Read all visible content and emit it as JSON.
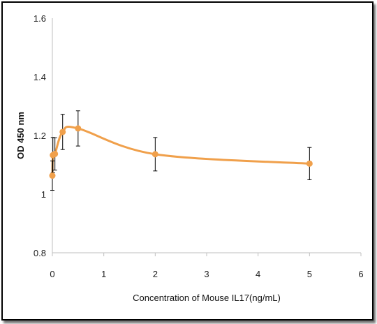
{
  "chart_data": {
    "type": "line",
    "xlabel": "Concentration of Mouse IL17(ng/mL)",
    "ylabel": "OD 450 nm",
    "xlim": [
      0,
      6
    ],
    "ylim": [
      0.8,
      1.6
    ],
    "x_ticks": [
      "0",
      "1",
      "2",
      "3",
      "4",
      "5",
      "6"
    ],
    "y_ticks": [
      "0.8",
      "1",
      "1.2",
      "1.4",
      "1.6"
    ],
    "grid": false,
    "legend": "none",
    "series": [
      {
        "color": "#f0a04b",
        "smooth": true,
        "points": [
          {
            "x": 0.0,
            "y": 1.063,
            "err": 0.05
          },
          {
            "x": 0.01,
            "y": 1.133,
            "err": 0.06
          },
          {
            "x": 0.05,
            "y": 1.137,
            "err": 0.055
          },
          {
            "x": 0.2,
            "y": 1.212,
            "err": 0.06
          },
          {
            "x": 0.5,
            "y": 1.224,
            "err": 0.06
          },
          {
            "x": 2.0,
            "y": 1.136,
            "err": 0.057
          },
          {
            "x": 5.0,
            "y": 1.104,
            "err": 0.055
          }
        ]
      }
    ]
  }
}
